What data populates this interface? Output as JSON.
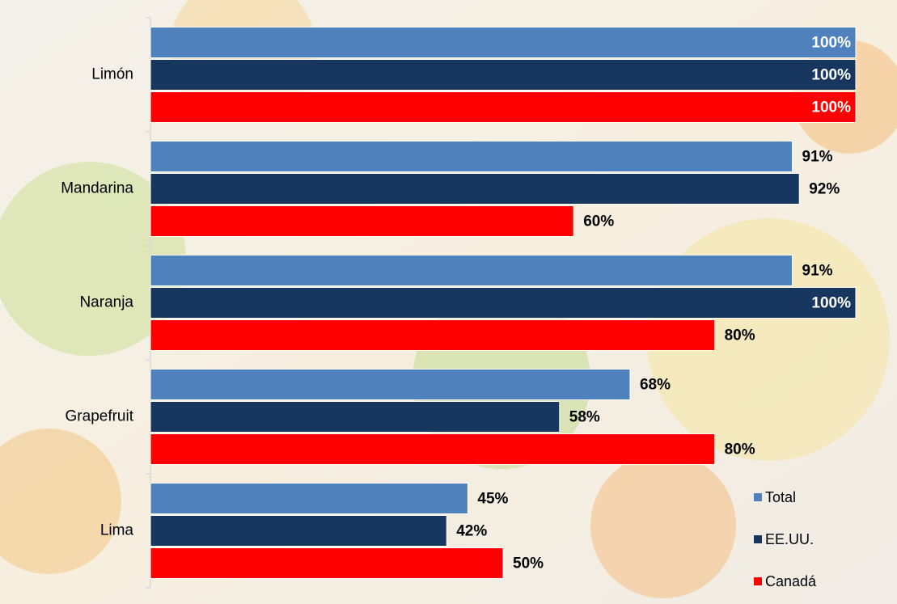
{
  "chart_data": {
    "type": "hbar",
    "categories": [
      "Limón",
      "Mandarina",
      "Naranja",
      "Grapefruit",
      "Lima"
    ],
    "series": [
      {
        "name": "Total",
        "color": "#4f81bd",
        "values": [
          100,
          91,
          91,
          68,
          45
        ],
        "value_labels": [
          "100%",
          "91%",
          "91%",
          "68%",
          "45%"
        ]
      },
      {
        "name": "EE.UU.",
        "color": "#17375e",
        "values": [
          100,
          92,
          100,
          58,
          42
        ],
        "value_labels": [
          "100%",
          "92%",
          "100%",
          "58%",
          "42%"
        ]
      },
      {
        "name": "Canadá",
        "color": "#ff0000",
        "values": [
          100,
          60,
          80,
          80,
          50
        ],
        "value_labels": [
          "100%",
          "60%",
          "80%",
          "80%",
          "50%"
        ]
      }
    ],
    "xlim": [
      0,
      100
    ],
    "legend": "bottom-right"
  }
}
